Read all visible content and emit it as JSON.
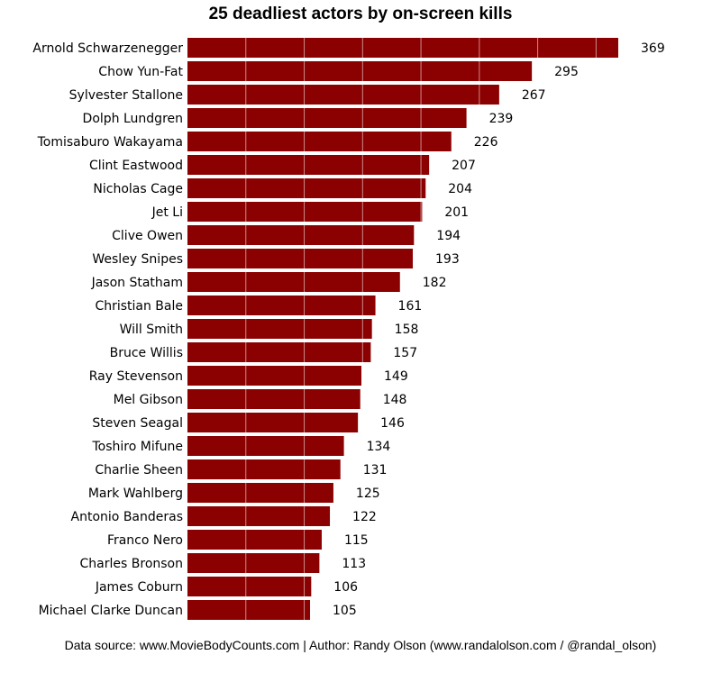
{
  "chart_data": {
    "type": "bar",
    "orientation": "horizontal",
    "title": "25 deadliest actors by on-screen kills",
    "xlabel": "",
    "ylabel": "",
    "xlim": [
      0,
      369
    ],
    "grid": true,
    "bar_color": "#8b0000",
    "grid_color": "#ffffff",
    "source": "Data source: www.MovieBodyCounts.com | Author: Randy Olson (www.randalolson.com / @randal_olson)",
    "categories": [
      "Arnold Schwarzenegger",
      "Chow Yun-Fat",
      "Sylvester Stallone",
      "Dolph Lundgren",
      "Tomisaburo Wakayama",
      "Clint Eastwood",
      "Nicholas Cage",
      "Jet Li",
      "Clive Owen",
      "Wesley Snipes",
      "Jason Statham",
      "Christian Bale",
      "Will Smith",
      "Bruce Willis",
      "Ray Stevenson",
      "Mel Gibson",
      "Steven Seagal",
      "Toshiro Mifune",
      "Charlie Sheen",
      "Mark Wahlberg",
      "Antonio Banderas",
      "Franco Nero",
      "Charles Bronson",
      "James Coburn",
      "Michael Clarke Duncan"
    ],
    "values": [
      369,
      295,
      267,
      239,
      226,
      207,
      204,
      201,
      194,
      193,
      182,
      161,
      158,
      157,
      149,
      148,
      146,
      134,
      131,
      125,
      122,
      115,
      113,
      106,
      105
    ]
  }
}
